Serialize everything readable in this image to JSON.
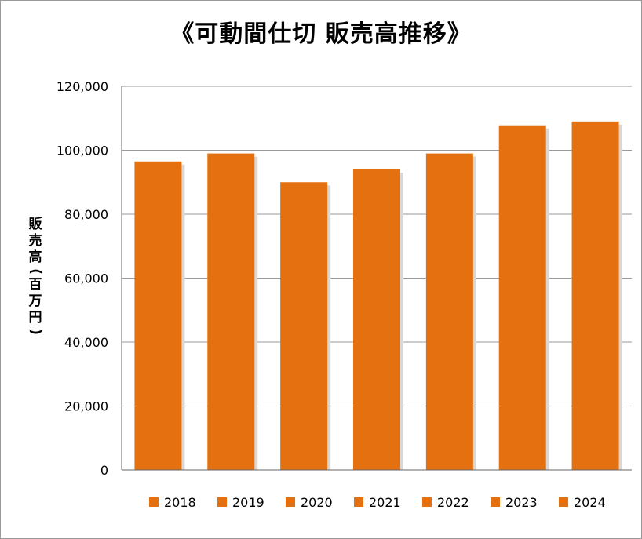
{
  "chart_data": {
    "type": "bar",
    "title": "《可動間仕切 販売高推移》",
    "ylabel": "販売高(百万円)",
    "xlabel": "",
    "ylim": [
      0,
      120000
    ],
    "yticks": [
      "0",
      "20,000",
      "40,000",
      "60,000",
      "80,000",
      "100,000",
      "120,000"
    ],
    "categories": [
      "2018",
      "2019",
      "2020",
      "2021",
      "2022",
      "2023",
      "2024"
    ],
    "series": [
      {
        "values": [
          96500,
          99000,
          90000,
          94000,
          99000,
          107800,
          109000
        ]
      }
    ],
    "legend": {
      "placement": "bottom",
      "entries": [
        "2018",
        "2019",
        "2020",
        "2021",
        "2022",
        "2023",
        "2024"
      ]
    },
    "grid": true,
    "colors": {
      "bar": "#E5700F",
      "bar_shadow": "#d8d8d8",
      "grid": "#9a9a9a",
      "axis": "#666666"
    }
  }
}
